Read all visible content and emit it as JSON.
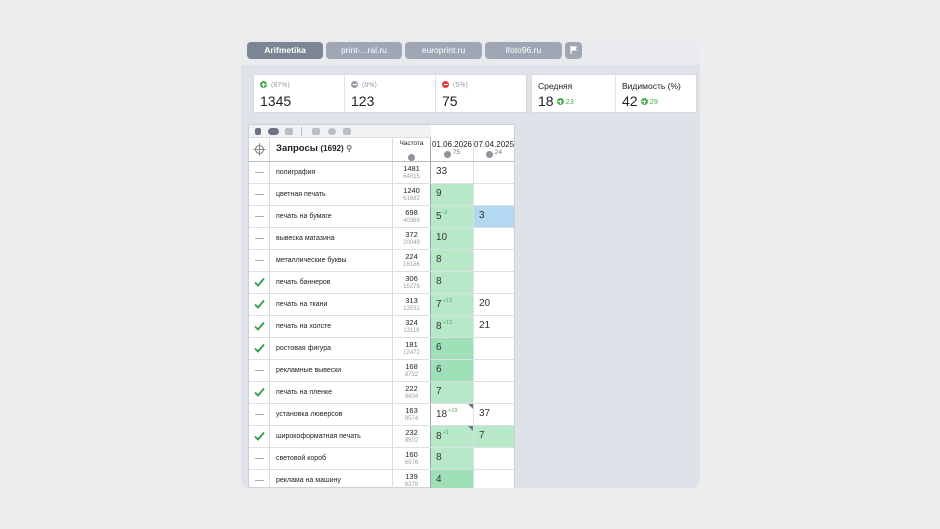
{
  "tabs": [
    {
      "label": "Arifmetika",
      "active": true
    },
    {
      "label": "print-...ral.ru",
      "active": false
    },
    {
      "label": "europrint.ru",
      "active": false
    },
    {
      "label": "lfoto96.ru",
      "active": false
    }
  ],
  "flag_icon": "flag-icon",
  "stats": [
    {
      "pct": "(87%)",
      "value": "1345",
      "trend": "up"
    },
    {
      "pct": "(8%)",
      "value": "123",
      "trend": "flat"
    },
    {
      "pct": "(5%)",
      "value": "75",
      "trend": "down"
    }
  ],
  "summary": {
    "avg_label": "Средняя",
    "avg_value": "18",
    "avg_delta": "23",
    "vis_label": "Видимость (%)",
    "vis_value": "42",
    "vis_delta": "29"
  },
  "table": {
    "queries_label": "Запросы",
    "queries_count": "(1692)",
    "freq_label": "Частота",
    "dates": [
      {
        "date": "01.06.2026",
        "sub": "75"
      },
      {
        "date": "07.04.2025",
        "sub": "24"
      }
    ],
    "rows": [
      {
        "checked": false,
        "query": "полиграфия",
        "freq": "1481",
        "freq2": "64015",
        "p1": "33",
        "d1": "",
        "p2": "",
        "c1": "white",
        "c2": "white",
        "corner1": false
      },
      {
        "checked": false,
        "query": "цветная печать",
        "freq": "1240",
        "freq2": "61682",
        "p1": "9",
        "d1": "",
        "p2": "",
        "c1": "green",
        "c2": "white",
        "corner1": false
      },
      {
        "checked": false,
        "query": "печать на бумаге",
        "freq": "698",
        "freq2": "40368",
        "p1": "5",
        "d1": "-2",
        "p2": "3",
        "c1": "green",
        "c2": "blue",
        "corner1": false
      },
      {
        "checked": false,
        "query": "вывеска магазина",
        "freq": "372",
        "freq2": "20049",
        "p1": "10",
        "d1": "",
        "p2": "",
        "c1": "green",
        "c2": "white",
        "corner1": false
      },
      {
        "checked": false,
        "query": "металлические буквы",
        "freq": "224",
        "freq2": "16186",
        "p1": "8",
        "d1": "",
        "p2": "",
        "c1": "green",
        "c2": "white",
        "corner1": false
      },
      {
        "checked": true,
        "query": "печать баннеров",
        "freq": "306",
        "freq2": "15276",
        "p1": "8",
        "d1": "",
        "p2": "",
        "c1": "green",
        "c2": "white",
        "corner1": false
      },
      {
        "checked": true,
        "query": "печать на ткани",
        "freq": "313",
        "freq2": "13532",
        "p1": "7",
        "d1": "+13",
        "p2": "20",
        "c1": "green",
        "c2": "white",
        "corner1": false
      },
      {
        "checked": true,
        "query": "печать на холсте",
        "freq": "324",
        "freq2": "13116",
        "p1": "8",
        "d1": "+13",
        "p2": "21",
        "c1": "green",
        "c2": "white",
        "corner1": false
      },
      {
        "checked": true,
        "query": "ростовая фигура",
        "freq": "181",
        "freq2": "12472",
        "p1": "6",
        "d1": "",
        "p2": "",
        "c1": "green-d",
        "c2": "white",
        "corner1": false
      },
      {
        "checked": false,
        "query": "рекламные вывески",
        "freq": "168",
        "freq2": "8732",
        "p1": "6",
        "d1": "",
        "p2": "",
        "c1": "green-d",
        "c2": "white",
        "corner1": false
      },
      {
        "checked": true,
        "query": "печать на пленке",
        "freq": "222",
        "freq2": "8604",
        "p1": "7",
        "d1": "",
        "p2": "",
        "c1": "green",
        "c2": "white",
        "corner1": false
      },
      {
        "checked": false,
        "query": "установка люверсов",
        "freq": "163",
        "freq2": "8574",
        "p1": "18",
        "d1": "+19",
        "p2": "37",
        "c1": "white",
        "c2": "white",
        "corner1": true
      },
      {
        "checked": true,
        "query": "широкоформатная печать",
        "freq": "232",
        "freq2": "8502",
        "p1": "8",
        "d1": "+1",
        "p2": "7",
        "c1": "green",
        "c2": "green",
        "corner1": true
      },
      {
        "checked": false,
        "query": "световой короб",
        "freq": "160",
        "freq2": "6976",
        "p1": "8",
        "d1": "",
        "p2": "",
        "c1": "green",
        "c2": "white",
        "corner1": false
      },
      {
        "checked": false,
        "query": "реклама на машину",
        "freq": "139",
        "freq2": "6378",
        "p1": "4",
        "d1": "",
        "p2": "",
        "c1": "green-d",
        "c2": "white",
        "corner1": false
      }
    ]
  },
  "colors": {
    "green_cell": "#b7e9c9",
    "green_dark_cell": "#9fe0b8",
    "blue_cell": "#b3d9f2",
    "positive": "#4caf50",
    "negative": "#e53935"
  }
}
